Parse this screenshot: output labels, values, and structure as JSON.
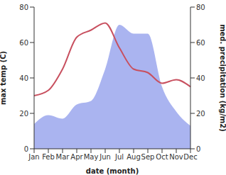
{
  "chart_data": {
    "type": "composed",
    "x_label": "date (month)",
    "y_label": "max temp (C)",
    "y2_label": "med. precipitation (kg/m2)",
    "categories": [
      "Jan",
      "Feb",
      "Mar",
      "Apr",
      "May",
      "Jun",
      "Jul",
      "Aug",
      "Sep",
      "Oct",
      "Nov",
      "Dec"
    ],
    "ylim": [
      0,
      80
    ],
    "yticks": [
      0,
      20,
      40,
      60,
      80
    ],
    "y2lim": [
      0,
      80
    ],
    "y2ticks": [
      0,
      20,
      40,
      60,
      80
    ],
    "grid": false,
    "series": [
      {
        "name": "med. precipitation",
        "type": "area",
        "axis": "y2",
        "color": "#aab4f0",
        "values": [
          14,
          19,
          17,
          25,
          27,
          45,
          70,
          65,
          65,
          35,
          21,
          13
        ]
      },
      {
        "name": "max temp",
        "type": "line",
        "axis": "y",
        "color": "#c8505f",
        "values": [
          30,
          33,
          45,
          63,
          67,
          71,
          57,
          45,
          43,
          37,
          39,
          35
        ]
      }
    ]
  }
}
